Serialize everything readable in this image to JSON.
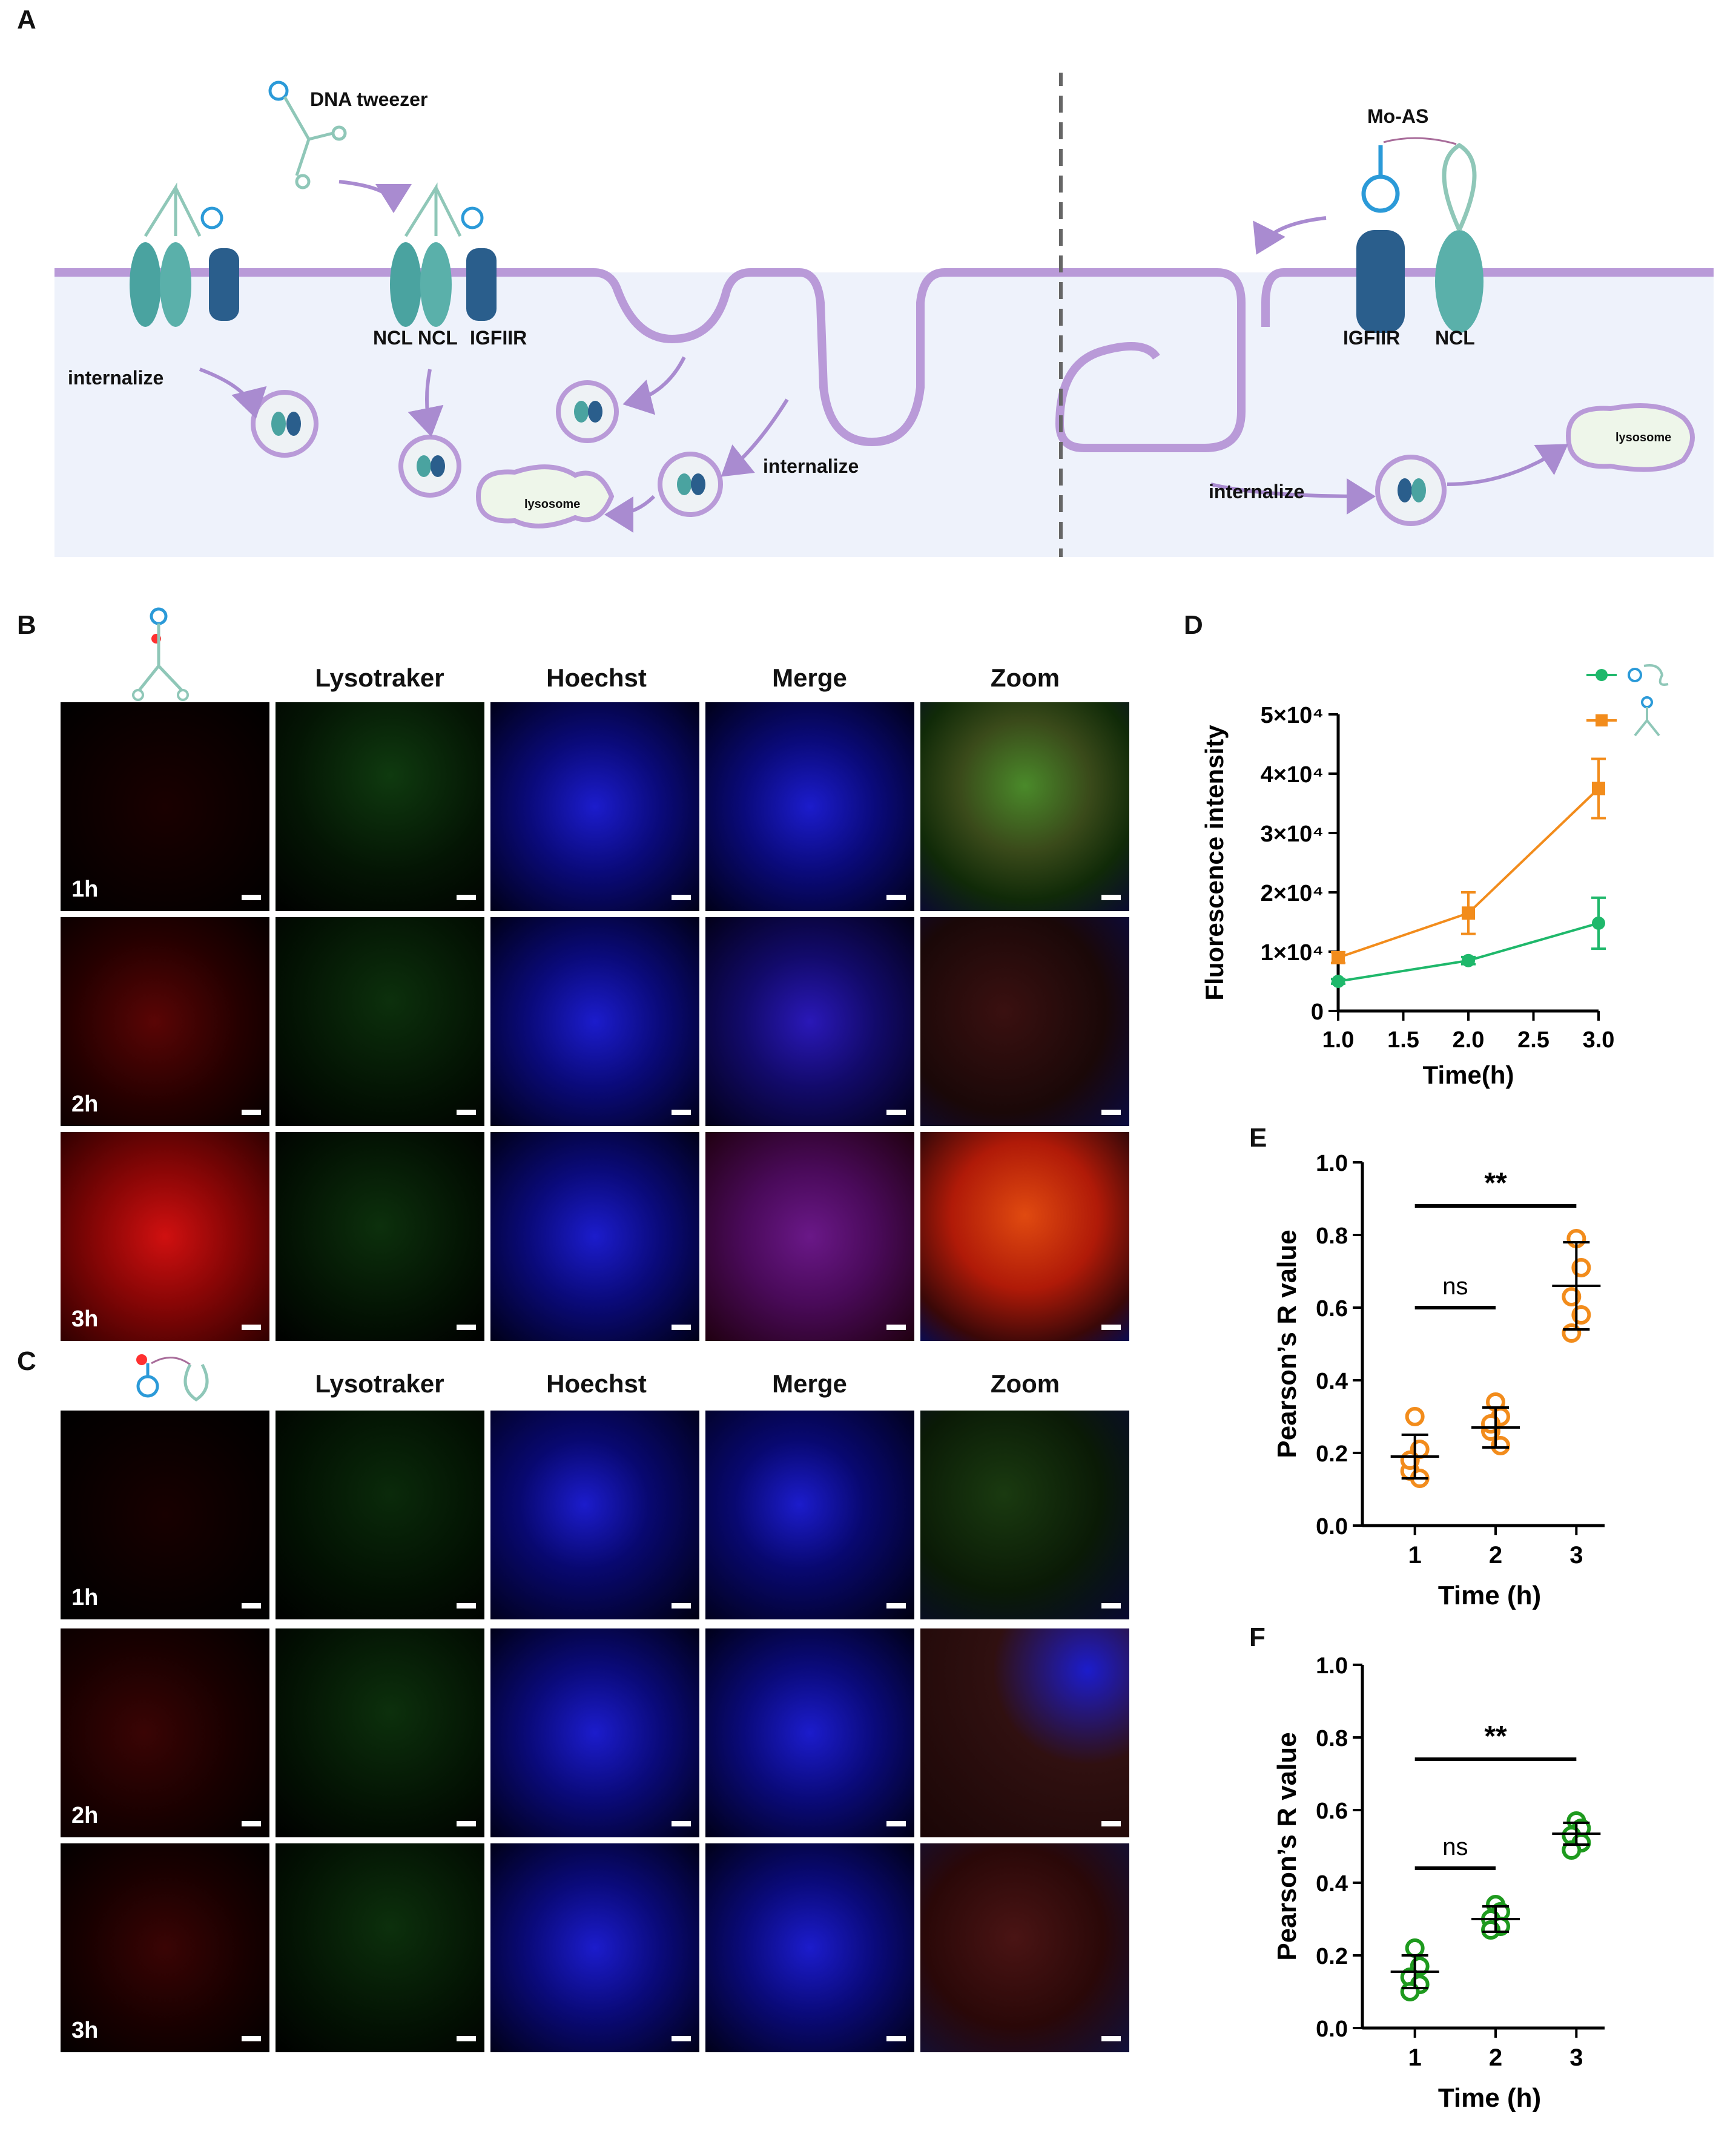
{
  "panels": {
    "A": "A",
    "B": "B",
    "C": "C",
    "D": "D",
    "E": "E",
    "F": "F"
  },
  "schematic": {
    "dna_tweezer": "DNA tweezer",
    "mo_as": "Mo-AS",
    "ncl_1": "NCL",
    "ncl_2": "NCL",
    "igfiir_left": "IGFIIR",
    "igfiir_right": "IGFIIR",
    "ncl_right": "NCL",
    "internalize_1": "internalize",
    "internalize_2": "internalize",
    "internalize_3": "internalize",
    "lysosome_left": "lysosome",
    "lysosome_right": "lysosome"
  },
  "microscopy": {
    "columns": [
      "Lysotraker",
      "Hoechst",
      "Merge",
      "Zoom"
    ],
    "rows": [
      "1h",
      "2h",
      "3h"
    ]
  },
  "colors": {
    "red": "#e01010",
    "green": "#1faa1f",
    "blue": "#1818d8",
    "orange": "#f28c1c",
    "teal": "#1fb86b",
    "purple": "#a98bd0"
  },
  "chart_data": [
    {
      "id": "D",
      "type": "line",
      "xlabel": "Time(h)",
      "ylabel": "Fluorescence intensity",
      "x": [
        1.0,
        2.0,
        3.0
      ],
      "xlim": [
        1.0,
        3.0
      ],
      "xticks": [
        "1.0",
        "1.5",
        "2.0",
        "2.5",
        "3.0"
      ],
      "ylim": [
        0,
        50000
      ],
      "yticks": [
        "0",
        "1×10⁴",
        "2×10⁴",
        "3×10⁴",
        "4×10⁴",
        "5×10⁴"
      ],
      "legend_position": "top-right",
      "series": [
        {
          "marker": "circle",
          "color": "#1fb86b",
          "values": [
            5000,
            8500,
            14800
          ],
          "errors": [
            400,
            600,
            4300
          ]
        },
        {
          "marker": "square",
          "color": "#f28c1c",
          "values": [
            9000,
            16500,
            37500
          ],
          "errors": [
            900,
            3500,
            5000
          ]
        }
      ]
    },
    {
      "id": "E",
      "type": "scatter",
      "xlabel": "Time (h)",
      "ylabel": "Pearson’s R value",
      "categories": [
        "1",
        "2",
        "3"
      ],
      "ylim": [
        0,
        1.0
      ],
      "yticks": [
        "0.0",
        "0.2",
        "0.4",
        "0.6",
        "0.8",
        "1.0"
      ],
      "color": "#f28c1c",
      "points": [
        [
          0.3,
          0.21,
          0.15,
          0.13,
          0.18
        ],
        [
          0.34,
          0.3,
          0.26,
          0.22,
          0.28
        ],
        [
          0.79,
          0.71,
          0.63,
          0.58,
          0.53
        ]
      ],
      "means": [
        0.19,
        0.27,
        0.66
      ],
      "sd": [
        0.06,
        0.055,
        0.12
      ],
      "annotations": [
        {
          "text": "ns",
          "from": 1,
          "to": 2,
          "y": 0.6
        },
        {
          "text": "**",
          "from": 1,
          "to": 3,
          "y": 0.88
        }
      ]
    },
    {
      "id": "F",
      "type": "scatter",
      "xlabel": "Time (h)",
      "ylabel": "Pearson’s R value",
      "categories": [
        "1",
        "2",
        "3"
      ],
      "ylim": [
        0,
        1.0
      ],
      "yticks": [
        "0.0",
        "0.2",
        "0.4",
        "0.6",
        "0.8",
        "1.0"
      ],
      "color": "#1e9a1e",
      "points": [
        [
          0.22,
          0.17,
          0.14,
          0.12,
          0.1
        ],
        [
          0.34,
          0.32,
          0.3,
          0.28,
          0.27
        ],
        [
          0.57,
          0.55,
          0.53,
          0.51,
          0.49
        ]
      ],
      "means": [
        0.155,
        0.3,
        0.535
      ],
      "sd": [
        0.045,
        0.035,
        0.03
      ],
      "annotations": [
        {
          "text": "ns",
          "from": 1,
          "to": 2,
          "y": 0.44
        },
        {
          "text": "**",
          "from": 1,
          "to": 3,
          "y": 0.74
        }
      ]
    }
  ]
}
